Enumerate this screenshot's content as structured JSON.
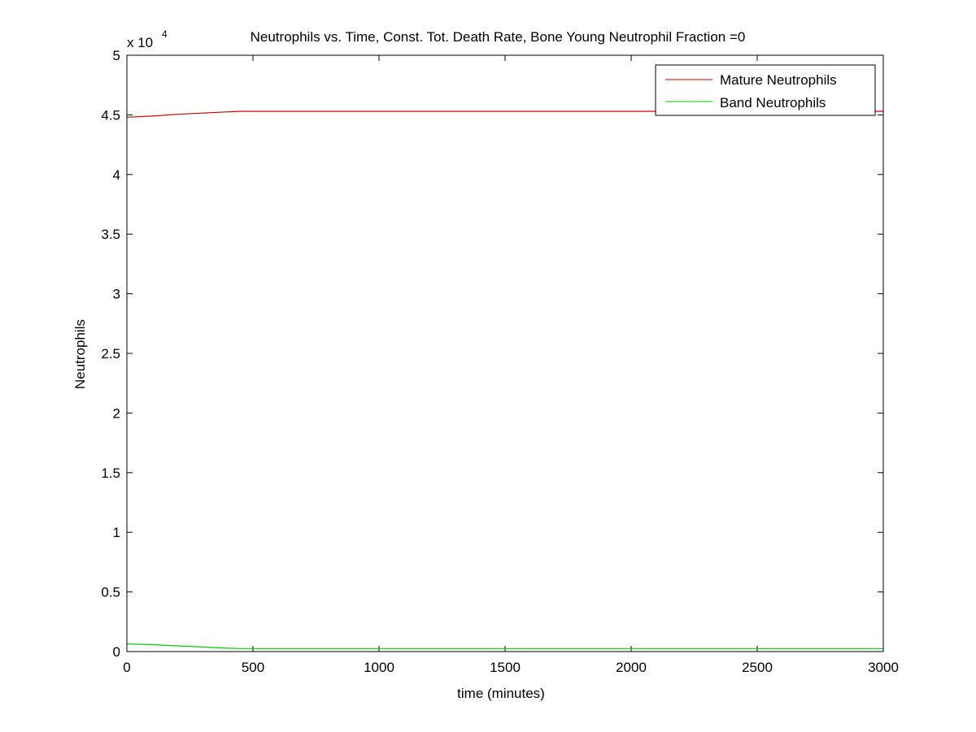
{
  "chart_data": {
    "type": "line",
    "title": "Neutrophils vs. Time, Const. Tot. Death Rate, Bone Young Neutrophil Fraction =0",
    "xlabel": "time (minutes)",
    "ylabel": "Neutrophils",
    "y_exponent_base": "x 10",
    "y_exponent_power": "4",
    "xlim": [
      0,
      3000
    ],
    "ylim": [
      0,
      5
    ],
    "xticks": [
      0,
      500,
      1000,
      1500,
      2000,
      2500,
      3000
    ],
    "xtick_labels": [
      "0",
      "500",
      "1000",
      "1500",
      "2000",
      "2500",
      "3000"
    ],
    "yticks": [
      0,
      0.5,
      1,
      1.5,
      2,
      2.5,
      3,
      3.5,
      4,
      4.5,
      5
    ],
    "ytick_labels": [
      "0",
      "0.5",
      "1",
      "1.5",
      "2",
      "2.5",
      "3",
      "3.5",
      "4",
      "4.5",
      "5"
    ],
    "grid": false,
    "legend_position": "top-right",
    "series": [
      {
        "name": "Mature Neutrophils",
        "color": "#cc0000",
        "x": [
          0,
          100,
          200,
          300,
          400,
          450,
          600,
          1000,
          1500,
          2000,
          2500,
          3000
        ],
        "y": [
          4.48,
          4.49,
          4.505,
          4.515,
          4.525,
          4.53,
          4.53,
          4.53,
          4.53,
          4.53,
          4.53,
          4.53
        ]
      },
      {
        "name": "Band Neutrophils",
        "color": "#00cc00",
        "x": [
          0,
          100,
          200,
          300,
          400,
          450,
          600,
          1000,
          1500,
          2000,
          2500,
          3000
        ],
        "y": [
          0.065,
          0.058,
          0.048,
          0.038,
          0.028,
          0.025,
          0.025,
          0.025,
          0.025,
          0.025,
          0.025,
          0.025
        ]
      }
    ]
  }
}
